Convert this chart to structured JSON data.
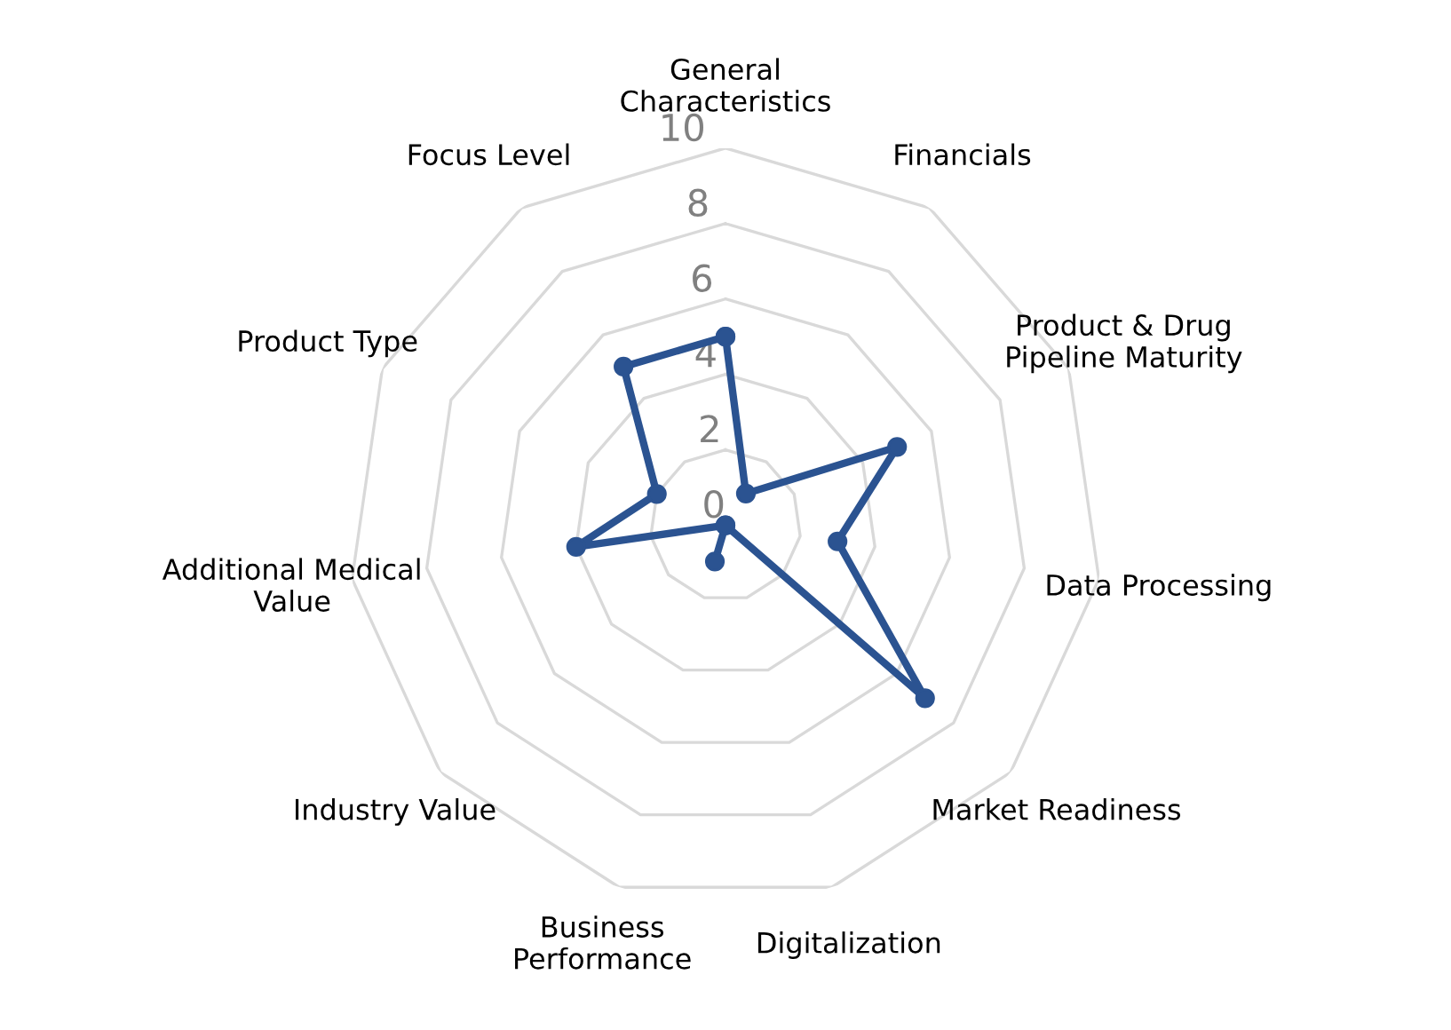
{
  "chart_data": {
    "type": "radar",
    "categories": [
      "General\nCharacteristics",
      "Financials",
      "Product & Drug\nPipeline Maturity",
      "Data Processing",
      "Market Readiness",
      "Digitalization",
      "Business\nPerformance",
      "Industry Value",
      "Additional Medical\nValue",
      "Product Type",
      "Focus Level"
    ],
    "series": [
      {
        "color": "#2b5391",
        "values": [
          5,
          1,
          5,
          3,
          7,
          0,
          1,
          0,
          4,
          2,
          5
        ]
      }
    ],
    "ylim": [
      0,
      10
    ],
    "yticks": [
      0,
      2,
      4,
      6,
      8,
      10
    ],
    "grid": true,
    "marker": "circle",
    "line_style": "solid"
  }
}
